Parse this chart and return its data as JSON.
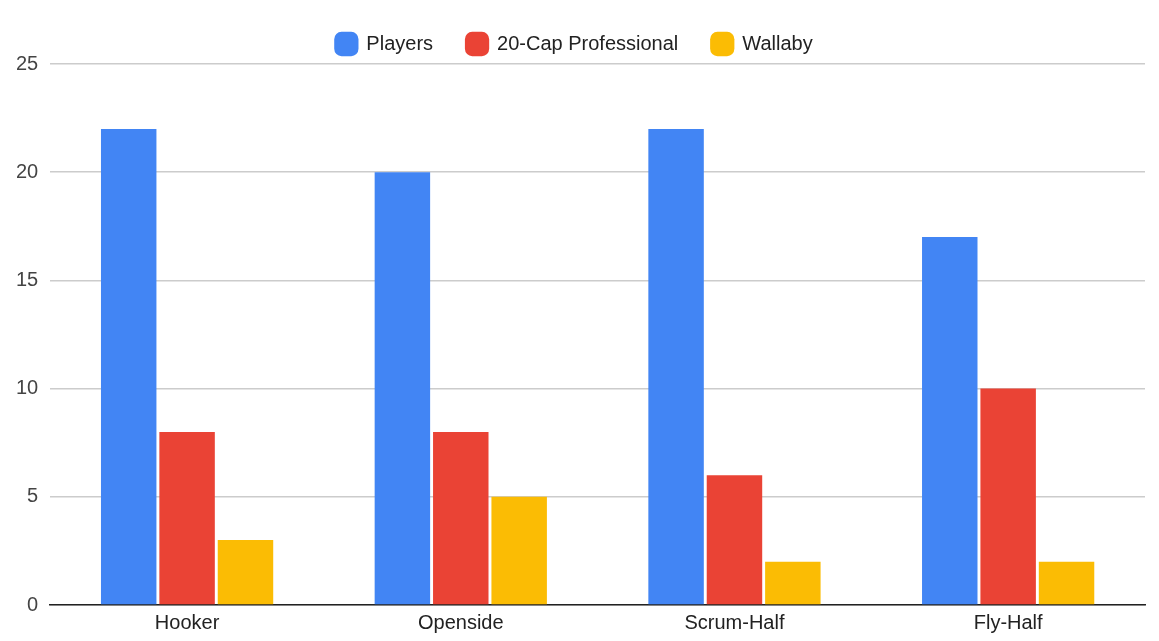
{
  "chart_data": {
    "type": "bar",
    "categories": [
      "Hooker",
      "Openside",
      "Scrum-Half",
      "Fly-Half"
    ],
    "series": [
      {
        "name": "Players",
        "color": "#4285f4",
        "values": [
          22,
          20,
          22,
          17
        ]
      },
      {
        "name": "20-Cap Professional",
        "color": "#ea4335",
        "values": [
          8,
          8,
          6,
          10
        ]
      },
      {
        "name": "Wallaby",
        "color": "#fbbc04",
        "values": [
          3,
          5,
          2,
          2
        ]
      }
    ],
    "ylim": [
      0,
      25
    ],
    "yticks": [
      0,
      5,
      10,
      15,
      20,
      25
    ],
    "grid": "y",
    "legend": "top"
  }
}
